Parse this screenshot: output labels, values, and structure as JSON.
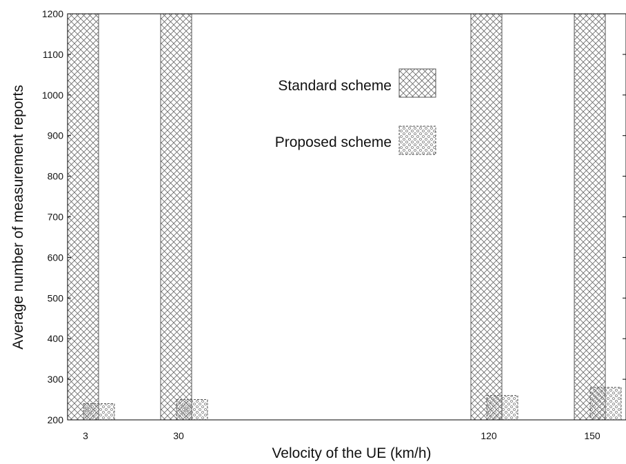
{
  "chart_data": {
    "type": "bar",
    "title": "",
    "xlabel": "Velocity of the UE (km/h)",
    "ylabel": "Average number of measurement reports",
    "categories": [
      "3",
      "30",
      "120",
      "150"
    ],
    "x": [
      3,
      30,
      120,
      150
    ],
    "xlim": [
      -2,
      160
    ],
    "ylim": [
      200,
      1200
    ],
    "yticks": [
      200,
      300,
      400,
      500,
      600,
      700,
      800,
      900,
      1000,
      1100,
      1200
    ],
    "series": [
      {
        "name": "Standard scheme",
        "values": [
          1200,
          1200,
          1200,
          1200
        ],
        "pattern": "crosshatch"
      },
      {
        "name": "Proposed scheme",
        "values": [
          240,
          250,
          260,
          280
        ],
        "pattern": "dotted"
      }
    ],
    "legend": "upper-center",
    "grid": false,
    "colors": {
      "outline": "#555555",
      "hatch": "#666666",
      "axis": "#000000"
    }
  }
}
